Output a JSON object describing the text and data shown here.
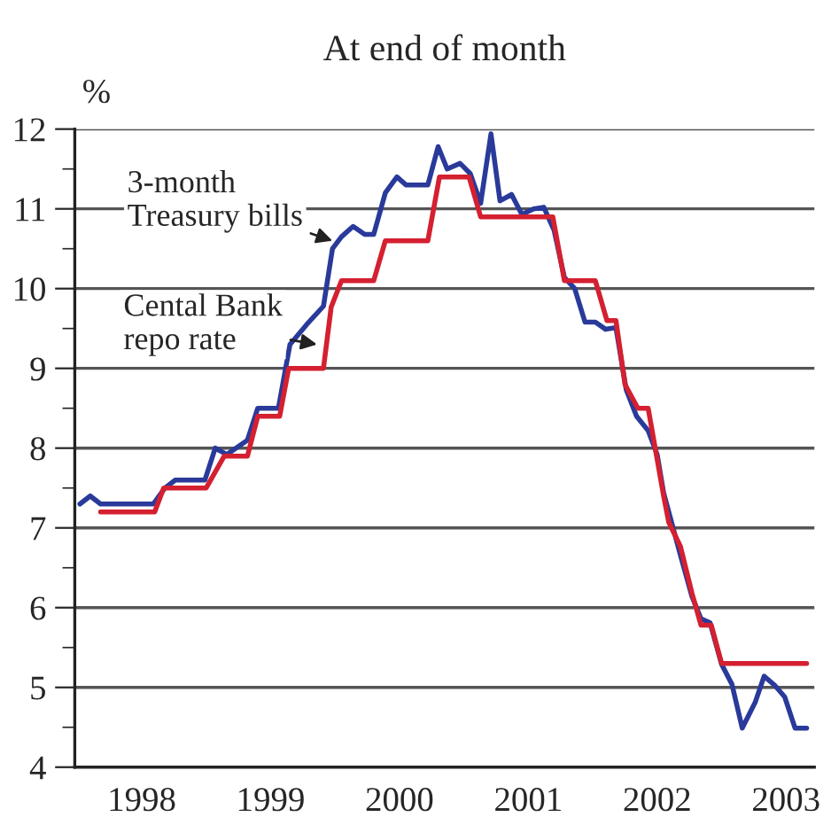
{
  "chart_data": {
    "type": "line",
    "title": "At end of month",
    "ylabel": "%",
    "xlim": [
      1997.98,
      2003.72
    ],
    "ylim": [
      4,
      12
    ],
    "xticks": [
      {
        "value": 1998.5,
        "label": "1998"
      },
      {
        "value": 1999.5,
        "label": "1999"
      },
      {
        "value": 2000.5,
        "label": "2000"
      },
      {
        "value": 2001.5,
        "label": "2001"
      },
      {
        "value": 2002.5,
        "label": "2002"
      },
      {
        "value": 2003.5,
        "label": "2003"
      }
    ],
    "yticks": [
      4,
      {
        "value": 4.5,
        "label": null
      },
      5,
      {
        "value": 5.5,
        "label": null
      },
      6,
      {
        "value": 6.5,
        "label": null
      },
      7,
      {
        "value": 7.5,
        "label": null
      },
      8,
      {
        "value": 8.5,
        "label": null
      },
      9,
      {
        "value": 9.5,
        "label": null
      },
      10,
      {
        "value": 10.5,
        "label": null
      },
      11,
      {
        "value": 11.5,
        "label": null
      },
      12
    ],
    "grid": "y",
    "marker": "none",
    "line_style": "solid",
    "series": [
      {
        "color": "#2a3a9a",
        "x": [
          1998.02,
          1998.1,
          1998.18,
          1998.59,
          1998.68,
          1998.76,
          1998.99,
          1999.07,
          1999.16,
          1999.32,
          1999.4,
          1999.56,
          1999.65,
          1999.78,
          1999.91,
          1999.98,
          2000.05,
          2000.14,
          2000.23,
          2000.3,
          2000.39,
          2000.48,
          2000.55,
          2000.72,
          2000.8,
          2000.87,
          2000.97,
          2001.05,
          2001.13,
          2001.21,
          2001.28,
          2001.37,
          2001.45,
          2001.54,
          2001.62,
          2001.7,
          2001.78,
          2001.86,
          2001.94,
          2002.02,
          2002.1,
          2002.18,
          2002.26,
          2002.34,
          2002.43,
          2002.5,
          2002.55,
          2002.68,
          2002.77,
          2002.84,
          2002.91,
          2003.0,
          2003.08,
          2003.16,
          2003.26,
          2003.33,
          2003.41,
          2003.49,
          2003.57,
          2003.66
        ],
        "values": [
          7.3,
          7.4,
          7.3,
          7.3,
          7.5,
          7.6,
          7.6,
          8.0,
          7.92,
          8.1,
          8.5,
          8.5,
          9.3,
          9.55,
          9.78,
          10.5,
          10.65,
          10.78,
          10.68,
          10.68,
          11.2,
          11.4,
          11.3,
          11.3,
          11.78,
          11.5,
          11.57,
          11.44,
          11.07,
          11.94,
          11.1,
          11.18,
          10.93,
          11.0,
          11.02,
          10.73,
          10.14,
          10.0,
          9.58,
          9.58,
          9.49,
          9.51,
          8.73,
          8.4,
          8.22,
          7.92,
          7.44,
          6.66,
          6.14,
          5.86,
          5.81,
          5.29,
          5.04,
          4.49,
          4.81,
          5.14,
          5.03,
          4.88,
          4.49,
          4.49
        ]
      },
      {
        "color": "#d42030",
        "x": [
          1998.18,
          1998.6,
          1998.67,
          1999.0,
          1999.14,
          1999.32,
          1999.4,
          1999.57,
          1999.64,
          1999.91,
          1999.97,
          2000.05,
          2000.3,
          2000.39,
          2000.72,
          2000.81,
          2001.04,
          2001.13,
          2001.69,
          2001.78,
          2002.02,
          2002.11,
          2002.18,
          2002.25,
          2002.35,
          2002.43,
          2002.55,
          2002.59,
          2002.68,
          2002.77,
          2002.84,
          2002.92,
          2003.0,
          2003.66
        ],
        "values": [
          7.2,
          7.2,
          7.5,
          7.5,
          7.9,
          7.9,
          8.4,
          8.4,
          9.0,
          9.0,
          9.77,
          10.1,
          10.1,
          10.6,
          10.6,
          11.4,
          11.4,
          10.9,
          10.9,
          10.1,
          10.1,
          9.6,
          9.6,
          8.8,
          8.5,
          8.5,
          7.4,
          7.07,
          6.77,
          6.18,
          5.78,
          5.78,
          5.3,
          5.3
        ]
      }
    ],
    "annotations": [
      {
        "text": "3-month\nTreasury bills",
        "x": 1999.98,
        "y": 10.6
      },
      {
        "text": "Cental Bank\nrepo rate",
        "x": 1999.86,
        "y": 9.3
      }
    ]
  }
}
